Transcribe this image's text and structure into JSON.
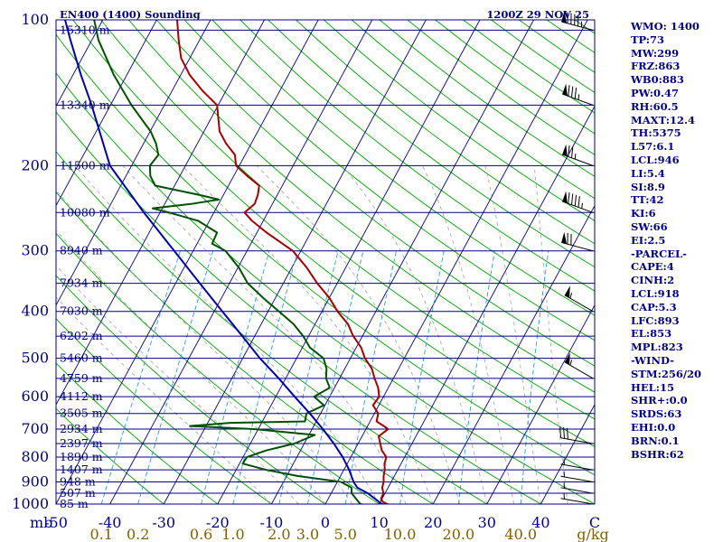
{
  "header": {
    "station": "EN400 (1400) Sounding",
    "time": "1200Z 29 NOV 25"
  },
  "colors": {
    "isobar": "#000080",
    "temperature": "#a00000",
    "dewpoint": "#005000",
    "parcel": "#0000a0",
    "isotherm": "#000080",
    "dry_adiabat": "#00a000",
    "moist_adiabat": "#a0a0a0",
    "mixing_ratio": "#3399dd",
    "axis_pressure": "#000080",
    "axis_temp": "#000080",
    "axis_mixing": "#806000",
    "indices_text": "#000080"
  },
  "indices": [
    "WMO: 1400",
    "TP:73",
    "MW:299",
    "FRZ:863",
    "WB0:883",
    "PW:0.47",
    "RH:60.5",
    "MAXT:12.4",
    "TH:5375",
    "L57:6.1",
    "LCL:946",
    "LI:5.4",
    "SI:8.9",
    "TT:42",
    "KI:6",
    "SW:66",
    "EI:2.5",
    "-PARCEL-",
    "CAPE:4",
    "CINH:2",
    "LCL:918",
    "CAP:5.3",
    "LFC:893",
    "EL:853",
    "MPL:823",
    "-WIND-",
    "STM:256/20",
    "HEL:15",
    "SHR+:0.0",
    "SRDS:63",
    "EHI:0.0",
    "BRN:0.1",
    "BSHR:62"
  ],
  "chart_data": {
    "type": "skew-t",
    "title": "EN400 (1400) Sounding",
    "subtitle": "1200Z 29 NOV 25",
    "pressure_range_hPa": [
      1000,
      100
    ],
    "temperature_range_C": [
      -50,
      50
    ],
    "pressure_labels": [
      "100",
      "200",
      "300",
      "400",
      "500",
      "600",
      "700",
      "800",
      "900",
      "1000"
    ],
    "pressure_units_label": "mb",
    "temperature_labels": [
      "-50",
      "-40",
      "-30",
      "-20",
      "-10",
      "0",
      "10",
      "20",
      "30",
      "40",
      "C"
    ],
    "mixing_ratio_labels": [
      "0.1",
      "0.2",
      "0.6",
      "1.0",
      "2.0",
      "3.0",
      "5.0",
      "10.0",
      "20.0",
      "40.0",
      "g/kg"
    ],
    "mixing_ratio_values": [
      0.1,
      0.2,
      0.6,
      1.0,
      2.0,
      3.0,
      5.0,
      10.0,
      20.0,
      40.0
    ],
    "height_levels": [
      {
        "p": 105,
        "label": "15310 m"
      },
      {
        "p": 150,
        "label": "13340 m"
      },
      {
        "p": 200,
        "label": "11500 m"
      },
      {
        "p": 250,
        "label": "10080 m"
      },
      {
        "p": 300,
        "label": "8940 m"
      },
      {
        "p": 350,
        "label": "7934 m"
      },
      {
        "p": 400,
        "label": "7030 m"
      },
      {
        "p": 450,
        "label": "6202 m"
      },
      {
        "p": 500,
        "label": "5460 m"
      },
      {
        "p": 550,
        "label": "4759 m"
      },
      {
        "p": 600,
        "label": "4112 m"
      },
      {
        "p": 650,
        "label": "3505 m"
      },
      {
        "p": 700,
        "label": "2934 m"
      },
      {
        "p": 750,
        "label": "2397 m"
      },
      {
        "p": 800,
        "label": "1890 m"
      },
      {
        "p": 850,
        "label": "1407 m"
      },
      {
        "p": 900,
        "label": "948 m"
      },
      {
        "p": 950,
        "label": "507 m"
      },
      {
        "p": 1000,
        "label": "85 m"
      }
    ],
    "series": [
      {
        "name": "Temperature",
        "points": [
          [
            1010,
            13
          ],
          [
            1000,
            11.5
          ],
          [
            990,
            10.5
          ],
          [
            975,
            9.8
          ],
          [
            950,
            9.7
          ],
          [
            925,
            8.9
          ],
          [
            900,
            8.6
          ],
          [
            875,
            8.0
          ],
          [
            850,
            7.6
          ],
          [
            825,
            6.9
          ],
          [
            800,
            6.6
          ],
          [
            775,
            5.1
          ],
          [
            750,
            4.1
          ],
          [
            725,
            3.1
          ],
          [
            700,
            4.1
          ],
          [
            690,
            3.0
          ],
          [
            675,
            1.2
          ],
          [
            650,
            0.7
          ],
          [
            625,
            -1.1
          ],
          [
            600,
            -0.8
          ],
          [
            575,
            -1.9
          ],
          [
            550,
            -3.5
          ],
          [
            525,
            -5.0
          ],
          [
            500,
            -7.3
          ],
          [
            475,
            -9.1
          ],
          [
            450,
            -11.7
          ],
          [
            425,
            -13.9
          ],
          [
            400,
            -17.1
          ],
          [
            375,
            -20.0
          ],
          [
            350,
            -23.7
          ],
          [
            325,
            -27.2
          ],
          [
            300,
            -31.5
          ],
          [
            275,
            -38.2
          ],
          [
            260,
            -42.1
          ],
          [
            250,
            -44.3
          ],
          [
            240,
            -43.3
          ],
          [
            230,
            -43.6
          ],
          [
            220,
            -44.3
          ],
          [
            210,
            -47.5
          ],
          [
            200,
            -50.6
          ],
          [
            190,
            -51.9
          ],
          [
            180,
            -54.7
          ],
          [
            170,
            -57.1
          ],
          [
            160,
            -58.6
          ],
          [
            150,
            -60.2
          ],
          [
            140,
            -64.4
          ],
          [
            130,
            -68.3
          ],
          [
            120,
            -71.6
          ],
          [
            110,
            -73.9
          ],
          [
            100,
            -76.2
          ]
        ]
      },
      {
        "name": "Dewpoint",
        "points": [
          [
            1010,
            9
          ],
          [
            1000,
            6.5
          ],
          [
            950,
            3.8
          ],
          [
            925,
            3.2
          ],
          [
            900,
            0.7
          ],
          [
            875,
            -8.0
          ],
          [
            850,
            -14.4
          ],
          [
            825,
            -19.4
          ],
          [
            800,
            -19.3
          ],
          [
            775,
            -16.4
          ],
          [
            750,
            -11.8
          ],
          [
            720,
            -8.9
          ],
          [
            700,
            -20.8
          ],
          [
            690,
            -33.0
          ],
          [
            680,
            -26.1
          ],
          [
            675,
            -12.1
          ],
          [
            650,
            -12.6
          ],
          [
            625,
            -10.2
          ],
          [
            600,
            -12.9
          ],
          [
            575,
            -10.9
          ],
          [
            550,
            -12.5
          ],
          [
            525,
            -13.4
          ],
          [
            500,
            -15.0
          ],
          [
            475,
            -18.6
          ],
          [
            450,
            -21.0
          ],
          [
            425,
            -24.0
          ],
          [
            400,
            -28.0
          ],
          [
            375,
            -32.3
          ],
          [
            350,
            -36.6
          ],
          [
            325,
            -39.8
          ],
          [
            300,
            -44.0
          ],
          [
            290,
            -47.2
          ],
          [
            275,
            -47.4
          ],
          [
            260,
            -52.1
          ],
          [
            250,
            -58.3
          ],
          [
            245,
            -61.8
          ],
          [
            240,
            -55.1
          ],
          [
            235,
            -50.4
          ],
          [
            230,
            -54.4
          ],
          [
            220,
            -63.6
          ],
          [
            210,
            -65.5
          ],
          [
            200,
            -66.6
          ],
          [
            190,
            -66.1
          ],
          [
            180,
            -67.7
          ],
          [
            170,
            -69.9
          ],
          [
            160,
            -72.9
          ],
          [
            150,
            -76.1
          ],
          [
            130,
            -82.4
          ],
          [
            110,
            -88.8
          ],
          [
            100,
            -91.6
          ]
        ]
      },
      {
        "name": "Parcel",
        "points": [
          [
            1010,
            13
          ],
          [
            1000,
            10.5
          ],
          [
            950,
            6.8
          ],
          [
            925,
            4.3
          ],
          [
            900,
            3.0
          ],
          [
            850,
            1.0
          ],
          [
            800,
            -1.5
          ],
          [
            750,
            -4.5
          ],
          [
            700,
            -8.0
          ],
          [
            650,
            -12.0
          ],
          [
            600,
            -16.5
          ],
          [
            550,
            -21.3
          ],
          [
            500,
            -26.8
          ],
          [
            450,
            -32.3
          ],
          [
            400,
            -38.5
          ],
          [
            350,
            -45.5
          ],
          [
            300,
            -53.5
          ],
          [
            250,
            -63.0
          ],
          [
            200,
            -74.0
          ],
          [
            180,
            -77.5
          ],
          [
            150,
            -83.5
          ],
          [
            130,
            -88.5
          ],
          [
            110,
            -94.0
          ],
          [
            100,
            -97.0
          ]
        ]
      }
    ],
    "wind_barbs": [
      {
        "p": 105,
        "dir": 285,
        "speed_kt": 95
      },
      {
        "p": 150,
        "dir": 290,
        "speed_kt": 85
      },
      {
        "p": 200,
        "dir": 290,
        "speed_kt": 75
      },
      {
        "p": 250,
        "dir": 290,
        "speed_kt": 95
      },
      {
        "p": 300,
        "dir": 285,
        "speed_kt": 70
      },
      {
        "p": 400,
        "dir": 300,
        "speed_kt": 55
      },
      {
        "p": 550,
        "dir": 300,
        "speed_kt": 55
      },
      {
        "p": 750,
        "dir": 280,
        "speed_kt": 30
      },
      {
        "p": 850,
        "dir": 280,
        "speed_kt": 5
      },
      {
        "p": 900,
        "dir": 280,
        "speed_kt": 5
      },
      {
        "p": 950,
        "dir": 280,
        "speed_kt": 5
      },
      {
        "p": 1000,
        "dir": 280,
        "speed_kt": 5
      }
    ]
  }
}
